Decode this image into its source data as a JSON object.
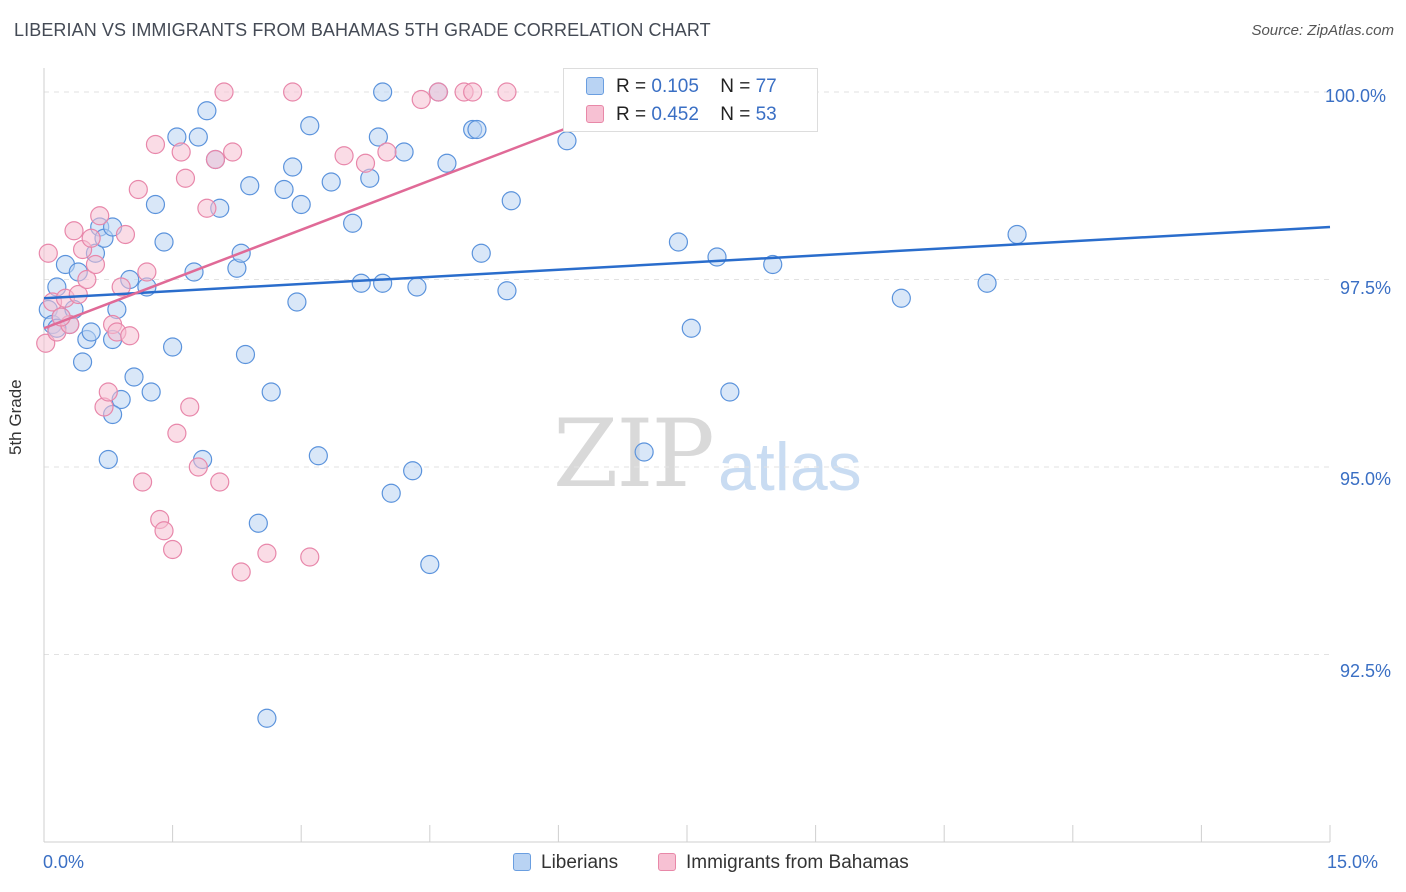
{
  "title": "LIBERIAN VS IMMIGRANTS FROM BAHAMAS 5TH GRADE CORRELATION CHART",
  "source": "Source: ZipAtlas.com",
  "watermark": {
    "zip": "ZIP",
    "atlas": "atlas"
  },
  "legend_top": {
    "r_label": "R =",
    "n_label": "N =",
    "rows": [
      {
        "r": "0.105",
        "n": "77"
      },
      {
        "r": "0.452",
        "n": "53"
      }
    ]
  },
  "legend_bottom": {
    "liberians": "Liberians",
    "bahamas": "Immigrants from Bahamas"
  },
  "colors": {
    "blue": "#5b93dc",
    "blue_fill": "#b9d3f3",
    "blue_line": "#2a6dcc",
    "pink": "#e887aa",
    "pink_fill": "#f6bfd2",
    "pink_line": "#e06a97",
    "tick_label": "#3a6fc4"
  },
  "chart_data": {
    "type": "scatter",
    "title": "LIBERIAN VS IMMIGRANTS FROM BAHAMAS 5TH GRADE CORRELATION CHART",
    "xlabel": "",
    "ylabel": "5th Grade",
    "xlim": [
      0,
      15
    ],
    "ylim": [
      90.0,
      100.4
    ],
    "x_tick_labels": [
      "0.0%",
      "15.0%"
    ],
    "y_ticks": [
      92.5,
      95.0,
      97.5,
      100.0
    ],
    "y_tick_labels": [
      "92.5%",
      "95.0%",
      "97.5%",
      "100.0%"
    ],
    "grid": true,
    "legend_position": "top-center",
    "series": [
      {
        "name": "Liberians",
        "R": 0.105,
        "N": 77,
        "trend": [
          [
            0,
            97.25
          ],
          [
            15,
            98.2
          ]
        ],
        "points": [
          [
            0.05,
            97.1
          ],
          [
            0.1,
            96.9
          ],
          [
            0.15,
            97.4
          ],
          [
            0.2,
            97.0
          ],
          [
            0.25,
            97.7
          ],
          [
            0.3,
            96.9
          ],
          [
            0.35,
            97.1
          ],
          [
            0.4,
            97.6
          ],
          [
            0.45,
            96.4
          ],
          [
            0.5,
            96.7
          ],
          [
            0.6,
            97.85
          ],
          [
            0.65,
            98.2
          ],
          [
            0.7,
            98.05
          ],
          [
            0.75,
            95.1
          ],
          [
            0.8,
            96.7
          ],
          [
            0.8,
            98.2
          ],
          [
            0.85,
            97.1
          ],
          [
            0.9,
            95.9
          ],
          [
            0.8,
            95.7
          ],
          [
            1.0,
            97.5
          ],
          [
            1.05,
            96.2
          ],
          [
            1.2,
            97.4
          ],
          [
            1.3,
            98.5
          ],
          [
            1.4,
            98.0
          ],
          [
            1.5,
            96.6
          ],
          [
            1.55,
            99.4
          ],
          [
            1.75,
            97.6
          ],
          [
            1.8,
            99.4
          ],
          [
            1.9,
            99.75
          ],
          [
            2.0,
            99.1
          ],
          [
            2.05,
            98.45
          ],
          [
            2.25,
            97.65
          ],
          [
            2.3,
            97.85
          ],
          [
            2.35,
            96.5
          ],
          [
            2.4,
            98.75
          ],
          [
            2.5,
            94.25
          ],
          [
            2.6,
            91.65
          ],
          [
            2.65,
            96.0
          ],
          [
            2.8,
            98.7
          ],
          [
            2.9,
            99.0
          ],
          [
            2.95,
            97.2
          ],
          [
            3.0,
            98.5
          ],
          [
            3.1,
            99.55
          ],
          [
            3.2,
            95.15
          ],
          [
            3.35,
            98.8
          ],
          [
            3.6,
            98.25
          ],
          [
            3.7,
            97.45
          ],
          [
            3.8,
            98.85
          ],
          [
            3.9,
            99.4
          ],
          [
            3.95,
            100.0
          ],
          [
            3.95,
            97.45
          ],
          [
            4.05,
            94.65
          ],
          [
            4.2,
            99.2
          ],
          [
            4.3,
            94.95
          ],
          [
            4.35,
            97.4
          ],
          [
            4.5,
            93.7
          ],
          [
            4.6,
            100.0
          ],
          [
            4.7,
            99.05
          ],
          [
            5.0,
            99.5
          ],
          [
            5.05,
            99.5
          ],
          [
            5.1,
            97.85
          ],
          [
            5.4,
            97.35
          ],
          [
            5.45,
            98.55
          ],
          [
            6.1,
            99.35
          ],
          [
            7.0,
            95.2
          ],
          [
            7.4,
            98.0
          ],
          [
            7.55,
            96.85
          ],
          [
            7.85,
            97.8
          ],
          [
            8.0,
            96.0
          ],
          [
            8.5,
            97.7
          ],
          [
            10.0,
            97.25
          ],
          [
            11.0,
            97.45
          ],
          [
            11.35,
            98.1
          ],
          [
            0.55,
            96.8
          ],
          [
            1.25,
            96.0
          ],
          [
            1.85,
            95.1
          ],
          [
            0.15,
            96.85
          ]
        ]
      },
      {
        "name": "Immigrants from Bahamas",
        "R": 0.452,
        "N": 53,
        "trend": [
          [
            0,
            96.85
          ],
          [
            7.2,
            100.0
          ]
        ],
        "points": [
          [
            0.02,
            96.65
          ],
          [
            0.05,
            97.85
          ],
          [
            0.1,
            97.2
          ],
          [
            0.15,
            96.8
          ],
          [
            0.25,
            97.25
          ],
          [
            0.3,
            96.9
          ],
          [
            0.35,
            98.15
          ],
          [
            0.4,
            97.3
          ],
          [
            0.45,
            97.9
          ],
          [
            0.5,
            97.5
          ],
          [
            0.55,
            98.05
          ],
          [
            0.6,
            97.7
          ],
          [
            0.65,
            98.35
          ],
          [
            0.7,
            95.8
          ],
          [
            0.75,
            96.0
          ],
          [
            0.8,
            96.9
          ],
          [
            0.85,
            96.8
          ],
          [
            0.9,
            97.4
          ],
          [
            0.95,
            98.1
          ],
          [
            1.0,
            96.75
          ],
          [
            1.1,
            98.7
          ],
          [
            1.15,
            94.8
          ],
          [
            1.2,
            97.6
          ],
          [
            1.3,
            99.3
          ],
          [
            1.35,
            94.3
          ],
          [
            1.4,
            94.15
          ],
          [
            1.5,
            93.9
          ],
          [
            1.55,
            95.45
          ],
          [
            1.6,
            99.2
          ],
          [
            1.65,
            98.85
          ],
          [
            1.7,
            95.8
          ],
          [
            1.8,
            95.0
          ],
          [
            1.9,
            98.45
          ],
          [
            2.0,
            99.1
          ],
          [
            2.05,
            94.8
          ],
          [
            2.1,
            100.0
          ],
          [
            2.2,
            99.2
          ],
          [
            2.3,
            93.6
          ],
          [
            2.6,
            93.85
          ],
          [
            2.9,
            100.0
          ],
          [
            3.1,
            93.8
          ],
          [
            3.5,
            99.15
          ],
          [
            3.75,
            99.05
          ],
          [
            4.0,
            99.2
          ],
          [
            4.4,
            99.9
          ],
          [
            4.6,
            100.0
          ],
          [
            4.9,
            100.0
          ],
          [
            5.0,
            100.0
          ],
          [
            5.4,
            100.0
          ],
          [
            6.45,
            100.0
          ],
          [
            7.2,
            100.0
          ],
          [
            8.9,
            100.0
          ],
          [
            0.2,
            97.0
          ]
        ]
      }
    ]
  }
}
